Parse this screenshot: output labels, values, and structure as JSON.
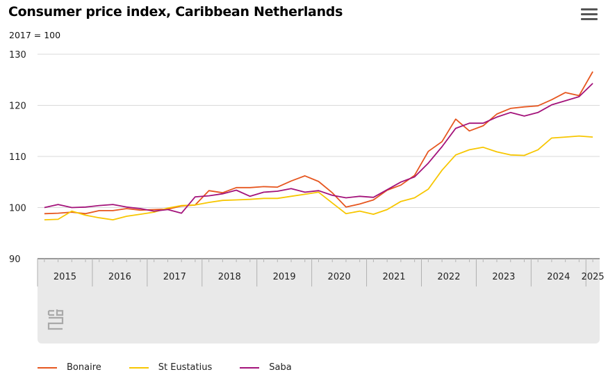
{
  "header": {
    "title": "Consumer price index, Caribbean Netherlands",
    "subtitle": "2017 = 100",
    "menu_icon": "hamburger-menu-icon"
  },
  "logo": {
    "text": "cbs",
    "icon": "cbs-logo-icon"
  },
  "colors": {
    "bonaire": "#e6561f",
    "st_eustatius": "#f7c600",
    "saba": "#a3127a",
    "navigator_bg": "#e9e9e9",
    "grid": "#d9d9d9",
    "axis": "#9a9a9a"
  },
  "chart_data": {
    "type": "line",
    "title": "Consumer price index, Caribbean Netherlands",
    "subtitle": "2017 = 100",
    "xlabel": "",
    "ylabel": "",
    "ylim": [
      90,
      130
    ],
    "yticks": [
      90,
      100,
      110,
      120,
      130
    ],
    "ytick_labels": [
      "90",
      "100",
      "110",
      "120",
      "130"
    ],
    "x_unit": "quarter",
    "xlim": [
      2014.875,
      2025.125
    ],
    "xtick_labels": [
      "2015",
      "2016",
      "2017",
      "2018",
      "2019",
      "2020",
      "2021",
      "2022",
      "2023",
      "2024",
      "2025"
    ],
    "grid": true,
    "legend_position": "bottom-left",
    "series": [
      {
        "name": "Bonaire",
        "color": "#e6561f",
        "x": [
          2015.0,
          2015.25,
          2015.5,
          2015.75,
          2016.0,
          2016.25,
          2016.5,
          2016.75,
          2017.0,
          2017.25,
          2017.5,
          2017.75,
          2018.0,
          2018.25,
          2018.5,
          2018.75,
          2019.0,
          2019.25,
          2019.5,
          2019.75,
          2020.0,
          2020.25,
          2020.5,
          2020.75,
          2021.0,
          2021.25,
          2021.5,
          2021.75,
          2022.0,
          2022.25,
          2022.5,
          2022.75,
          2023.0,
          2023.25,
          2023.5,
          2023.75,
          2024.0,
          2024.25,
          2024.5,
          2024.75,
          2025.0
        ],
        "values": [
          98.8,
          98.9,
          99.1,
          98.8,
          99.4,
          99.4,
          99.8,
          99.5,
          99.6,
          99.7,
          100.3,
          100.5,
          103.3,
          102.9,
          103.9,
          103.9,
          104.1,
          104.0,
          105.2,
          106.2,
          105.1,
          102.9,
          100.1,
          100.7,
          101.5,
          103.4,
          104.4,
          106.3,
          111.0,
          112.9,
          117.3,
          115.0,
          116.0,
          118.3,
          119.4,
          119.7,
          119.9,
          121.1,
          122.5,
          121.9,
          126.6
        ]
      },
      {
        "name": "St Eustatius",
        "color": "#f7c600",
        "x": [
          2015.0,
          2015.25,
          2015.5,
          2015.75,
          2016.0,
          2016.25,
          2016.5,
          2016.75,
          2017.0,
          2017.25,
          2017.5,
          2017.75,
          2018.0,
          2018.25,
          2018.5,
          2018.75,
          2019.0,
          2019.25,
          2019.5,
          2019.75,
          2020.0,
          2020.25,
          2020.5,
          2020.75,
          2021.0,
          2021.25,
          2021.5,
          2021.75,
          2022.0,
          2022.25,
          2022.5,
          2022.75,
          2023.0,
          2023.25,
          2023.5,
          2023.75,
          2024.0,
          2024.25,
          2024.5,
          2024.75,
          2025.0
        ],
        "values": [
          97.6,
          97.7,
          99.3,
          98.5,
          98.0,
          97.6,
          98.3,
          98.7,
          99.1,
          99.9,
          100.4,
          100.5,
          101.0,
          101.4,
          101.5,
          101.6,
          101.8,
          101.8,
          102.2,
          102.6,
          103.0,
          100.9,
          98.8,
          99.3,
          98.7,
          99.6,
          101.2,
          101.9,
          103.6,
          107.3,
          110.3,
          111.3,
          111.8,
          110.9,
          110.3,
          110.2,
          111.3,
          113.6,
          113.8,
          114.0,
          113.8
        ]
      },
      {
        "name": "Saba",
        "color": "#a3127a",
        "x": [
          2015.0,
          2015.25,
          2015.5,
          2015.75,
          2016.0,
          2016.25,
          2016.5,
          2016.75,
          2017.0,
          2017.25,
          2017.5,
          2017.75,
          2018.0,
          2018.25,
          2018.5,
          2018.75,
          2019.0,
          2019.25,
          2019.5,
          2019.75,
          2020.0,
          2020.25,
          2020.5,
          2020.75,
          2021.0,
          2021.25,
          2021.5,
          2021.75,
          2022.0,
          2022.25,
          2022.5,
          2022.75,
          2023.0,
          2023.25,
          2023.5,
          2023.75,
          2024.0,
          2024.25,
          2024.5,
          2024.75,
          2025.0
        ],
        "values": [
          100.0,
          100.6,
          100.0,
          100.1,
          100.4,
          100.6,
          100.1,
          99.8,
          99.3,
          99.6,
          98.9,
          102.1,
          102.3,
          102.7,
          103.4,
          102.2,
          103.0,
          103.2,
          103.7,
          103.0,
          103.3,
          102.4,
          101.9,
          102.2,
          102.0,
          103.5,
          105.0,
          106.0,
          108.7,
          111.9,
          115.5,
          116.5,
          116.5,
          117.7,
          118.6,
          117.9,
          118.6,
          120.1,
          120.9,
          121.7,
          124.3
        ]
      }
    ]
  }
}
